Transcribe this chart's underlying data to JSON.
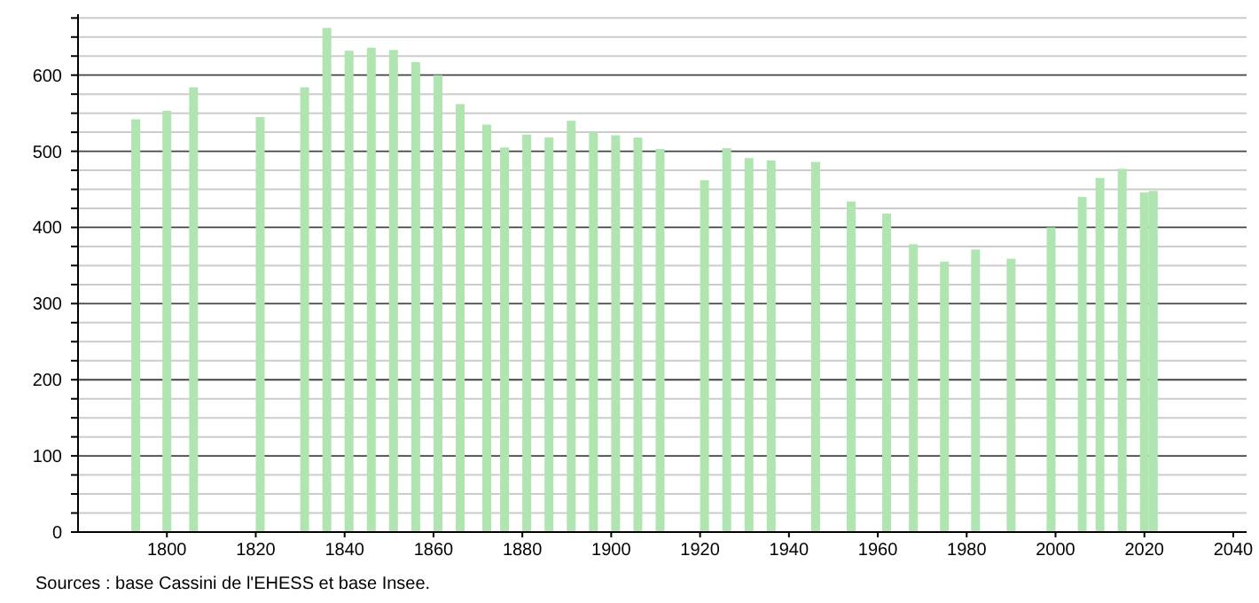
{
  "chart_data": {
    "type": "bar",
    "x": [
      1793,
      1800,
      1806,
      1821,
      1831,
      1836,
      1841,
      1846,
      1851,
      1856,
      1861,
      1866,
      1872,
      1876,
      1881,
      1886,
      1891,
      1896,
      1901,
      1906,
      1911,
      1921,
      1926,
      1931,
      1936,
      1946,
      1954,
      1962,
      1968,
      1975,
      1982,
      1990,
      1999,
      2006,
      2010,
      2015,
      2020,
      2022
    ],
    "values": [
      542,
      553,
      584,
      545,
      584,
      662,
      632,
      636,
      633,
      617,
      600,
      562,
      535,
      505,
      522,
      518,
      540,
      525,
      521,
      518,
      503,
      462,
      504,
      491,
      488,
      486,
      434,
      418,
      378,
      355,
      371,
      359,
      400,
      440,
      465,
      477,
      446,
      448
    ],
    "color": "#b0e4b0",
    "xlim": [
      1780,
      2043
    ],
    "xticks": [
      1800,
      1820,
      1840,
      1860,
      1880,
      1900,
      1920,
      1940,
      1960,
      1980,
      2000,
      2020,
      2040
    ],
    "ylim": [
      0,
      680
    ],
    "yticks": [
      0,
      {
        "value": 25,
        "label": null
      },
      {
        "value": 50,
        "label": null
      },
      {
        "value": 75,
        "label": null
      },
      100,
      {
        "value": 125,
        "label": null
      },
      {
        "value": 150,
        "label": null
      },
      {
        "value": 175,
        "label": null
      },
      200,
      {
        "value": 225,
        "label": null
      },
      {
        "value": 250,
        "label": null
      },
      {
        "value": 275,
        "label": null
      },
      300,
      {
        "value": 325,
        "label": null
      },
      {
        "value": 350,
        "label": null
      },
      {
        "value": 375,
        "label": null
      },
      400,
      {
        "value": 425,
        "label": null
      },
      {
        "value": 450,
        "label": null
      },
      {
        "value": 475,
        "label": null
      },
      500,
      {
        "value": 525,
        "label": null
      },
      {
        "value": 550,
        "label": null
      },
      {
        "value": 575,
        "label": null
      },
      600,
      {
        "value": 625,
        "label": null
      },
      {
        "value": 650,
        "label": null
      },
      {
        "value": 675,
        "label": null
      }
    ],
    "grid": true,
    "annotations": [
      "Sources : base Cassini de l'EHESS et base Insee."
    ]
  }
}
